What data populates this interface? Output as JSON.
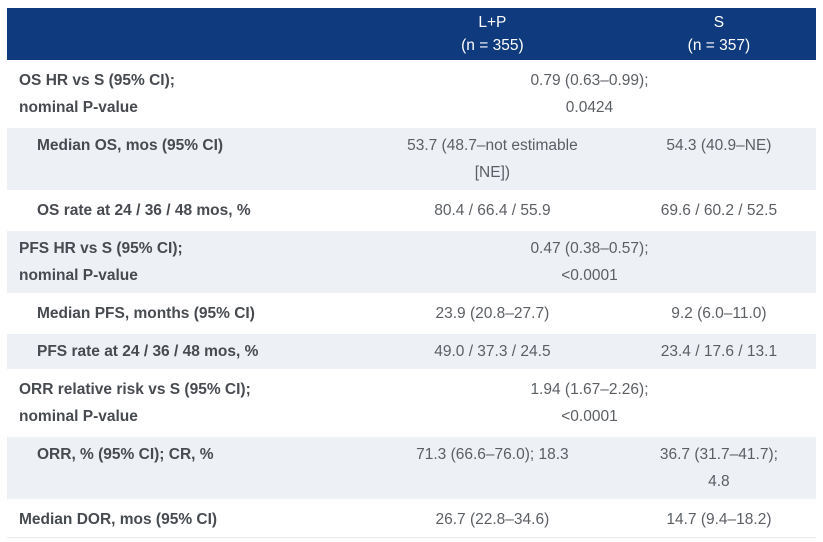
{
  "table": {
    "header": {
      "col_row_label": "",
      "col_lp": "L+P\n(n = 355)",
      "col_s": "S\n(n = 357)"
    },
    "rows": [
      {
        "label": "OS HR vs S (95% CI);\nnominal P-value",
        "span_value": "0.79 (0.63–0.99);\n0.0424"
      },
      {
        "label": "Median OS, mos (95% CI)",
        "lp": "53.7 (48.7–not estimable\n[NE])",
        "s": "54.3 (40.9–NE)"
      },
      {
        "label": "OS rate at 24 / 36 / 48 mos, %",
        "lp": "80.4 / 66.4 / 55.9",
        "s": "69.6 / 60.2 / 52.5"
      },
      {
        "label": "PFS HR vs S (95% CI);\nnominal P-value",
        "span_value": "0.47 (0.38–0.57);\n<0.0001"
      },
      {
        "label": "Median PFS, months (95% CI)",
        "lp": "23.9 (20.8–27.7)",
        "s": "9.2 (6.0–11.0)"
      },
      {
        "label": "PFS rate at 24 / 36 / 48 mos, %",
        "lp": "49.0 / 37.3 / 24.5",
        "s": "23.4 / 17.6 / 13.1"
      },
      {
        "label": "ORR relative risk vs S (95% CI);\nnominal P-value",
        "span_value": "1.94 (1.67–2.26);\n<0.0001"
      },
      {
        "label": "ORR, % (95% CI); CR, %",
        "lp": "71.3 (66.6–76.0); 18.3",
        "s": "36.7 (31.7–41.7);\n4.8"
      },
      {
        "label": "Median DOR, mos (95% CI)",
        "lp": "26.7 (22.8–34.6)",
        "s": "14.7 (9.4–18.2)"
      }
    ],
    "colors": {
      "header_bg": "#0f3a7d",
      "header_text": "#ffffff",
      "shaded_row_bg": "#edf0f4",
      "label_text": "#474b50",
      "value_text": "#5b5f64"
    }
  }
}
